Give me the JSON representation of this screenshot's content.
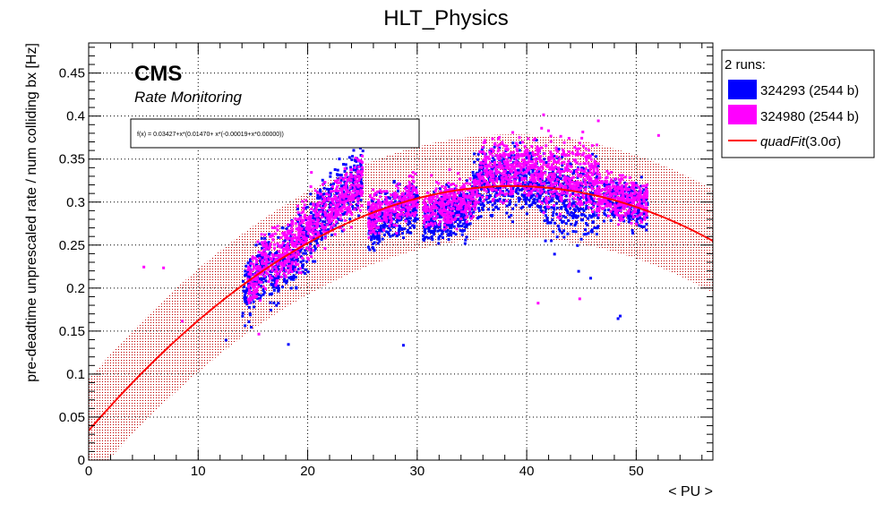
{
  "chart_data": {
    "type": "scatter",
    "title": "HLT_Physics",
    "xlabel": "< PU >",
    "ylabel": "pre-deadtime unprescaled rate / num colliding bx [Hz]",
    "xlim": [
      0,
      57
    ],
    "ylim": [
      0,
      0.485
    ],
    "x_ticks": [
      0,
      10,
      20,
      30,
      40,
      50
    ],
    "y_ticks": [
      0,
      0.05,
      0.1,
      0.15,
      0.2,
      0.25,
      0.3,
      0.35,
      0.4,
      0.45
    ],
    "x_tick_labels": [
      "0",
      "10",
      "20",
      "30",
      "40",
      "50"
    ],
    "y_tick_labels": [
      "0",
      "0.05",
      "0.1",
      "0.15",
      "0.2",
      "0.25",
      "0.3",
      "0.35",
      "0.4",
      "0.45"
    ],
    "grid": true,
    "cms_label": "CMS",
    "subtitle": "Rate Monitoring",
    "fit_formula": "f(x) = 0.03427+x*(0.01470+ x*(-0.00019+x*0.00000))",
    "fit": {
      "name": "quadFit(3.0σ)",
      "name_main": "quadFit",
      "name_arg": "(3.0σ)",
      "coefficients": [
        0.03427,
        0.0147,
        -0.00019,
        0.0
      ],
      "band_sigma": 0.06,
      "color": "#ff0000"
    },
    "legend": {
      "header": "2 runs:",
      "placement": "outside-right"
    },
    "series": [
      {
        "name": "324293 (2544 b)",
        "color": "#0000ff",
        "clusters": [
          {
            "x": [
              14,
              16.5
            ],
            "y": [
              0.165,
              0.26
            ],
            "slope": 0.02
          },
          {
            "x": [
              16.5,
              21
            ],
            "y": [
              0.19,
              0.3
            ],
            "slope": 0.015
          },
          {
            "x": [
              21,
              25
            ],
            "y": [
              0.25,
              0.36
            ],
            "slope": 0.012
          },
          {
            "x": [
              25.5,
              30
            ],
            "y": [
              0.24,
              0.33
            ],
            "slope": 0.005
          },
          {
            "x": [
              30.5,
              35
            ],
            "y": [
              0.24,
              0.33
            ],
            "slope": 0.004
          },
          {
            "x": [
              35,
              41
            ],
            "y": [
              0.27,
              0.38
            ],
            "slope": 0.001
          },
          {
            "x": [
              41,
              46.5
            ],
            "y": [
              0.24,
              0.37
            ],
            "slope": -0.001
          },
          {
            "x": [
              47,
              51
            ],
            "y": [
              0.26,
              0.34
            ],
            "slope": -0.002
          }
        ],
        "outliers": [
          {
            "x": 14.8,
            "y": 0.155
          },
          {
            "x": 12.5,
            "y": 0.14
          },
          {
            "x": 18.2,
            "y": 0.135
          },
          {
            "x": 28.7,
            "y": 0.134
          },
          {
            "x": 42.5,
            "y": 0.24
          },
          {
            "x": 44.7,
            "y": 0.22
          },
          {
            "x": 45.8,
            "y": 0.212
          },
          {
            "x": 48.3,
            "y": 0.165
          },
          {
            "x": 48.5,
            "y": 0.168
          },
          {
            "x": 44.6,
            "y": 0.25
          },
          {
            "x": 25,
            "y": 0.36
          }
        ]
      },
      {
        "name": "324980 (2544 b)",
        "color": "#ff00ff",
        "clusters": [
          {
            "x": [
              14.5,
              17
            ],
            "y": [
              0.18,
              0.27
            ],
            "slope": 0.02
          },
          {
            "x": [
              17,
              21.5
            ],
            "y": [
              0.21,
              0.31
            ],
            "slope": 0.015
          },
          {
            "x": [
              21.5,
              25
            ],
            "y": [
              0.26,
              0.35
            ],
            "slope": 0.012
          },
          {
            "x": [
              25.5,
              30
            ],
            "y": [
              0.26,
              0.33
            ],
            "slope": 0.005
          },
          {
            "x": [
              30.5,
              35.5
            ],
            "y": [
              0.26,
              0.34
            ],
            "slope": 0.004
          },
          {
            "x": [
              35.5,
              41
            ],
            "y": [
              0.29,
              0.39
            ],
            "slope": 0.001
          },
          {
            "x": [
              41,
              46.5
            ],
            "y": [
              0.27,
              0.39
            ],
            "slope": -0.001
          },
          {
            "x": [
              46.5,
              51
            ],
            "y": [
              0.27,
              0.34
            ],
            "slope": -0.002
          }
        ],
        "outliers": [
          {
            "x": 5,
            "y": 0.225
          },
          {
            "x": 6.8,
            "y": 0.224
          },
          {
            "x": 8.5,
            "y": 0.162
          },
          {
            "x": 15.5,
            "y": 0.147
          },
          {
            "x": 41,
            "y": 0.183
          },
          {
            "x": 44.8,
            "y": 0.188
          },
          {
            "x": 52,
            "y": 0.378
          },
          {
            "x": 41.5,
            "y": 0.402
          },
          {
            "x": 46.5,
            "y": 0.395
          },
          {
            "x": 20.3,
            "y": 0.335
          }
        ]
      }
    ]
  }
}
